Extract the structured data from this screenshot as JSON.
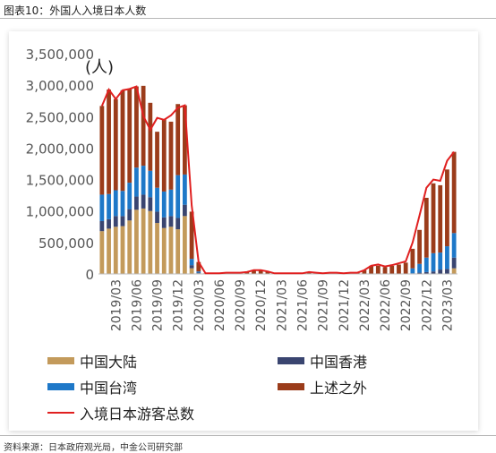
{
  "header": {
    "title": "图表10：外国人入境日本人数"
  },
  "footer": {
    "source": "资料来源：日本政府观光局，中金公司研究部"
  },
  "colors": {
    "mainland": "#C39A5B",
    "hongkong": "#3A4570",
    "taiwan": "#1E78C8",
    "other": "#9B3C1B",
    "total": "#E02020",
    "axis": "#bfbfbf"
  },
  "chart_data": {
    "type": "bar",
    "stacked": true,
    "unit_label": "(人)",
    "ylim": [
      0,
      3500000
    ],
    "yticks": [
      0,
      500000,
      1000000,
      1500000,
      2000000,
      2500000,
      3000000,
      3500000
    ],
    "ytick_labels": [
      "0",
      "500,000",
      "1,000,000",
      "1,500,000",
      "2,000,000",
      "2,500,000",
      "3,000,000",
      "3,500,000"
    ],
    "xtick_labels": [
      "2019/03",
      "2019/06",
      "2019/09",
      "2019/12",
      "2020/03",
      "2020/06",
      "2020/09",
      "2020/12",
      "2021/03",
      "2021/06",
      "2021/09",
      "2021/12",
      "2022/03",
      "2022/06",
      "2022/09",
      "2022/12",
      "2023/03"
    ],
    "categories": [
      "2019/01",
      "2019/02",
      "2019/03",
      "2019/04",
      "2019/05",
      "2019/06",
      "2019/07",
      "2019/08",
      "2019/09",
      "2019/10",
      "2019/11",
      "2019/12",
      "2020/01",
      "2020/02",
      "2020/03",
      "2020/04",
      "2020/05",
      "2020/06",
      "2020/07",
      "2020/08",
      "2020/09",
      "2020/10",
      "2020/11",
      "2020/12",
      "2021/01",
      "2021/02",
      "2021/03",
      "2021/04",
      "2021/05",
      "2021/06",
      "2021/07",
      "2021/08",
      "2021/09",
      "2021/10",
      "2021/11",
      "2021/12",
      "2022/01",
      "2022/02",
      "2022/03",
      "2022/04",
      "2022/05",
      "2022/06",
      "2022/07",
      "2022/08",
      "2022/09",
      "2022/10",
      "2022/11",
      "2022/12",
      "2023/01",
      "2023/02",
      "2023/03",
      "2023/04"
    ],
    "series": [
      {
        "name": "中国大陆",
        "values": [
          680000,
          720000,
          750000,
          760000,
          850000,
          1020000,
          1040000,
          1000000,
          810000,
          730000,
          750000,
          710000,
          920000,
          90000,
          10000,
          0,
          0,
          0,
          0,
          0,
          0,
          0,
          0,
          0,
          0,
          0,
          0,
          0,
          0,
          0,
          0,
          0,
          0,
          0,
          0,
          0,
          0,
          0,
          0,
          0,
          0,
          0,
          0,
          0,
          0,
          0,
          0,
          0,
          0,
          0,
          0,
          90000
        ]
      },
      {
        "name": "中国香港",
        "values": [
          160000,
          150000,
          170000,
          160000,
          180000,
          210000,
          220000,
          220000,
          180000,
          170000,
          170000,
          180000,
          180000,
          50000,
          10000,
          0,
          0,
          0,
          0,
          0,
          0,
          0,
          0,
          0,
          0,
          0,
          0,
          0,
          0,
          0,
          0,
          0,
          0,
          0,
          0,
          0,
          0,
          0,
          0,
          0,
          0,
          0,
          0,
          0,
          0,
          10000,
          20000,
          30000,
          40000,
          70000,
          80000,
          170000
        ]
      },
      {
        "name": "中国台湾",
        "values": [
          420000,
          400000,
          410000,
          400000,
          420000,
          460000,
          460000,
          420000,
          380000,
          410000,
          420000,
          680000,
          480000,
          100000,
          20000,
          0,
          0,
          0,
          0,
          0,
          0,
          0,
          0,
          0,
          0,
          0,
          0,
          0,
          0,
          0,
          0,
          0,
          0,
          0,
          0,
          0,
          0,
          0,
          0,
          0,
          0,
          0,
          0,
          0,
          0,
          80000,
          140000,
          230000,
          290000,
          270000,
          360000,
          390000
        ]
      },
      {
        "name": "上述之外",
        "values": [
          1410000,
          1660000,
          1450000,
          1600000,
          1490000,
          1290000,
          1270000,
          1080000,
          890000,
          1150000,
          1080000,
          1130000,
          1100000,
          750000,
          150000,
          10000,
          10000,
          10000,
          20000,
          20000,
          20000,
          40000,
          50000,
          50000,
          40000,
          10000,
          10000,
          10000,
          10000,
          10000,
          30000,
          20000,
          10000,
          20000,
          20000,
          10000,
          20000,
          20000,
          60000,
          130000,
          130000,
          110000,
          130000,
          150000,
          180000,
          310000,
          540000,
          950000,
          1110000,
          1070000,
          1220000,
          1290000
        ]
      }
    ],
    "total": {
      "name": "入境日本游客总数",
      "values": [
        2670000,
        2930000,
        2780000,
        2920000,
        2940000,
        2980000,
        2510000,
        2290000,
        2480000,
        2450000,
        2520000,
        2640000,
        2680000,
        1090000,
        190000,
        10000,
        10000,
        10000,
        20000,
        20000,
        20000,
        30000,
        60000,
        60000,
        40000,
        10000,
        10000,
        10000,
        10000,
        10000,
        30000,
        20000,
        10000,
        20000,
        20000,
        10000,
        20000,
        20000,
        60000,
        130000,
        150000,
        120000,
        140000,
        170000,
        200000,
        500000,
        930000,
        1370000,
        1500000,
        1480000,
        1800000,
        1940000
      ]
    }
  },
  "legend": {
    "mainland": "中国大陆",
    "hongkong": "中国香港",
    "taiwan": "中国台湾",
    "other": "上述之外",
    "total": "入境日本游客总数"
  }
}
